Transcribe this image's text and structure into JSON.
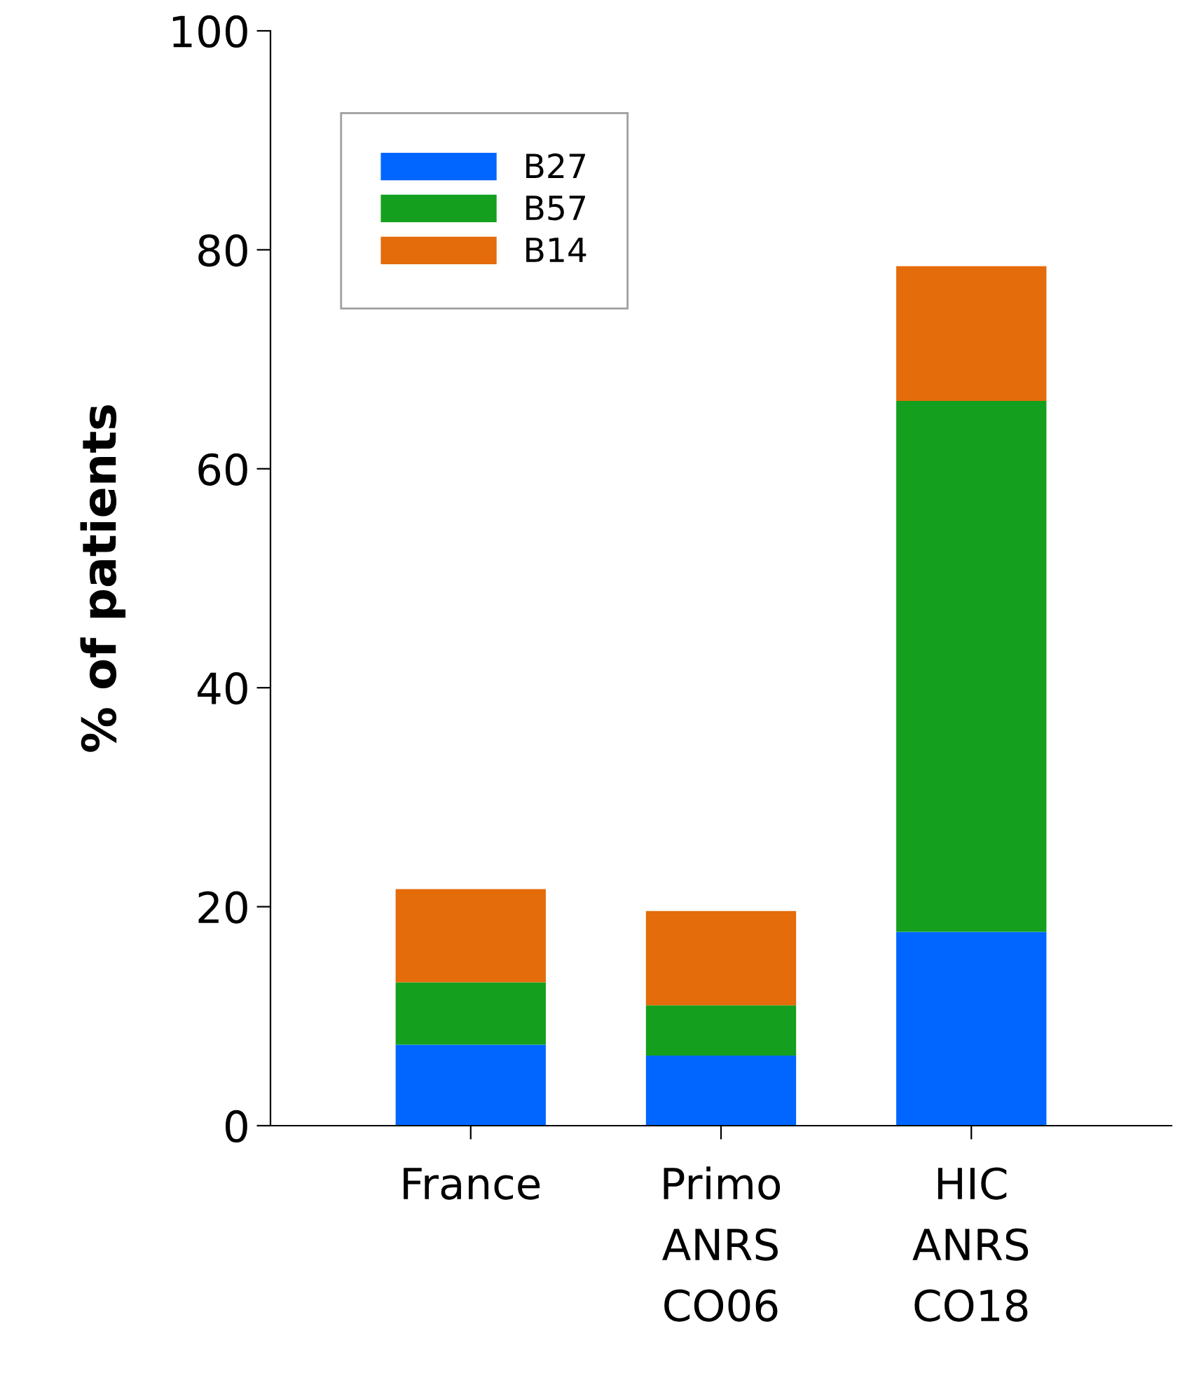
{
  "chart_data": {
    "type": "bar",
    "stacked": true,
    "ylabel": "% of patients",
    "categories": [
      "France",
      "Primo\nANRS\nCO06",
      "HIC\nANRS\nCO18"
    ],
    "series": [
      {
        "name": "B27",
        "color": "#0066ff",
        "values": [
          7.4,
          6.4,
          17.7
        ]
      },
      {
        "name": "B57",
        "color": "#14a01e",
        "values": [
          5.7,
          4.6,
          48.5
        ]
      },
      {
        "name": "B14",
        "color": "#e46c0a",
        "values": [
          8.5,
          8.6,
          12.3
        ]
      }
    ],
    "ylim": [
      0,
      100
    ],
    "yticks": [
      0,
      20,
      40,
      60,
      80,
      100
    ],
    "grid": false,
    "legend": "top left"
  }
}
